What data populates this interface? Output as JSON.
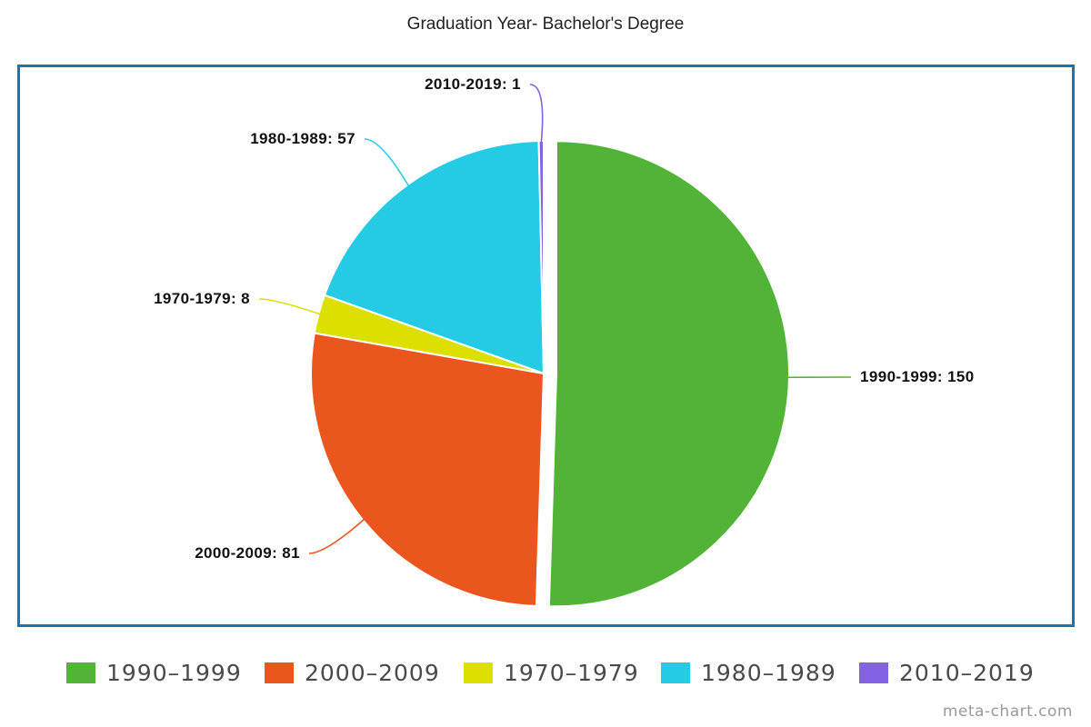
{
  "chart_data": {
    "type": "pie",
    "title": "Graduation Year- Bachelor's Degree",
    "slices": [
      {
        "name": "1990-1999",
        "value": 150,
        "label": "1990-1999: 150",
        "legend": "1990–1999",
        "color": "#52b436"
      },
      {
        "name": "2000-2009",
        "value": 81,
        "label": "2000-2009: 81",
        "legend": "2000–2009",
        "color": "#eb561e"
      },
      {
        "name": "1970-1979",
        "value": 8,
        "label": "1970-1979: 8",
        "legend": "1970–1979",
        "color": "#dce000"
      },
      {
        "name": "1980-1989",
        "value": 57,
        "label": "1980-1989: 57",
        "legend": "1980–1989",
        "color": "#25cbe5"
      },
      {
        "name": "2010-2019",
        "value": 1,
        "label": "2010-2019: 1",
        "legend": "2010–2019",
        "color": "#8362e3"
      }
    ],
    "legend_position": "bottom",
    "exploded_slice": "1990-1999"
  },
  "watermark": "meta-chart.com"
}
